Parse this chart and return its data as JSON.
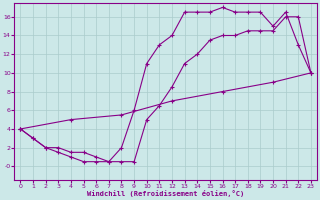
{
  "xlabel": "Windchill (Refroidissement éolien,°C)",
  "bg_color": "#cce8e8",
  "line_color": "#880088",
  "grid_color": "#aacccc",
  "xlim": [
    -0.5,
    23.5
  ],
  "ylim": [
    -1.5,
    17.5
  ],
  "xticks": [
    0,
    1,
    2,
    3,
    4,
    5,
    6,
    7,
    8,
    9,
    10,
    11,
    12,
    13,
    14,
    15,
    16,
    17,
    18,
    19,
    20,
    21,
    22,
    23
  ],
  "yticks": [
    0,
    2,
    4,
    6,
    8,
    10,
    12,
    14,
    16
  ],
  "ytick_labels": [
    "-0",
    "2",
    "4",
    "6",
    "8",
    "10",
    "12",
    "14",
    "16"
  ],
  "line1_x": [
    0,
    1,
    2,
    3,
    4,
    5,
    6,
    7,
    8,
    9,
    10,
    11,
    12,
    13,
    14,
    15,
    16,
    17,
    18,
    19,
    20,
    21,
    22,
    23
  ],
  "line1_y": [
    4,
    3,
    2,
    1.5,
    1,
    0.5,
    0.5,
    0.5,
    2,
    6,
    11,
    13,
    14,
    16.5,
    16.5,
    16.5,
    17,
    16.5,
    16.5,
    16.5,
    15,
    16.5,
    13,
    10
  ],
  "line2_x": [
    0,
    1,
    2,
    3,
    4,
    5,
    6,
    7,
    8,
    9,
    10,
    11,
    12,
    13,
    14,
    15,
    16,
    17,
    18,
    19,
    20,
    21,
    22,
    23
  ],
  "line2_y": [
    4,
    3,
    2,
    2,
    1.5,
    1.5,
    1,
    0.5,
    0.5,
    0.5,
    5,
    6.5,
    8.5,
    11,
    12,
    13.5,
    14,
    14,
    14.5,
    14.5,
    14.5,
    16,
    16,
    10
  ],
  "line3_x": [
    0,
    4,
    8,
    12,
    16,
    20,
    23
  ],
  "line3_y": [
    4,
    5,
    5.5,
    7,
    8,
    9,
    10
  ]
}
